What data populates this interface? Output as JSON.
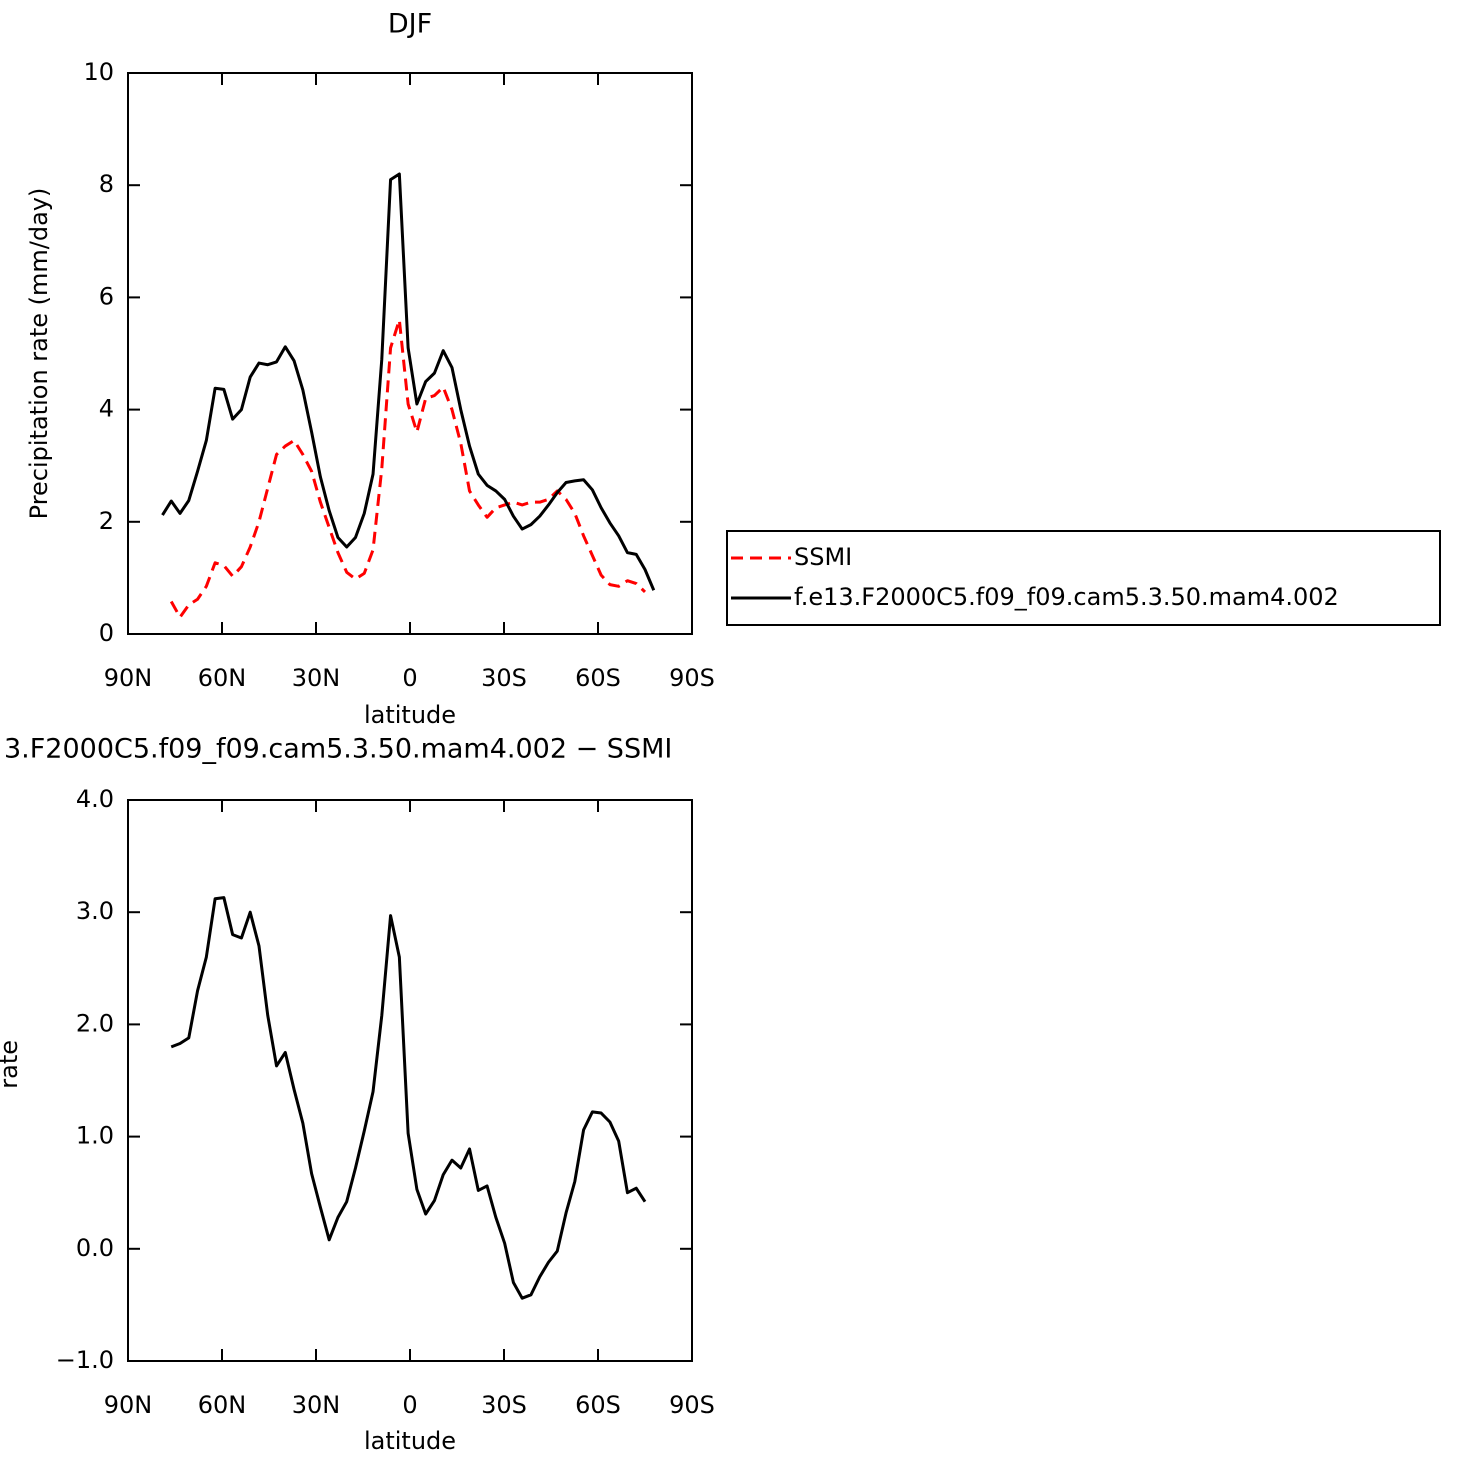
{
  "chart_data": [
    {
      "type": "line",
      "title": "DJF",
      "xlabel": "latitude",
      "ylabel": "Precipitation rate (mm/day)",
      "x": [
        79.0,
        76.2,
        73.4,
        70.6,
        67.8,
        65.0,
        62.2,
        59.4,
        56.6,
        53.8,
        51.0,
        48.2,
        45.4,
        42.6,
        39.8,
        37.0,
        34.2,
        31.4,
        28.6,
        25.8,
        23.0,
        20.2,
        17.4,
        14.6,
        11.8,
        9.0,
        6.2,
        3.4,
        0.6,
        -2.2,
        -5.0,
        -7.8,
        -10.6,
        -13.4,
        -16.2,
        -19.0,
        -21.8,
        -24.6,
        -27.4,
        -30.2,
        -33.0,
        -35.8,
        -38.6,
        -41.4,
        -44.2,
        -47.0,
        -49.8,
        -52.6,
        -55.4,
        -58.2,
        -61.0,
        -63.8,
        -66.6,
        -69.4,
        -72.2,
        -75.0,
        -77.8
      ],
      "series": [
        {
          "name": "SSMI",
          "color": "#ff0000",
          "line_style": "dashed",
          "values": [
            null,
            0.58,
            0.3,
            0.52,
            0.62,
            0.85,
            1.27,
            1.22,
            1.03,
            1.2,
            1.55,
            2.0,
            2.6,
            3.2,
            3.35,
            3.45,
            3.2,
            2.9,
            2.35,
            1.9,
            1.45,
            1.1,
            0.98,
            1.08,
            1.5,
            2.95,
            5.1,
            5.6,
            4.1,
            3.6,
            4.2,
            4.25,
            4.4,
            4.0,
            3.4,
            2.55,
            2.3,
            2.08,
            2.25,
            2.3,
            2.35,
            2.3,
            2.35,
            2.35,
            2.4,
            2.55,
            2.4,
            2.15,
            1.75,
            1.4,
            1.05,
            0.88,
            0.85,
            0.95,
            0.9,
            0.75,
            null
          ]
        },
        {
          "name": "f.e13.F2000C5.f09_f09.cam5.3.50.mam4.002",
          "color": "#000000",
          "line_style": "solid",
          "values": [
            2.12,
            2.37,
            2.15,
            2.38,
            2.9,
            3.45,
            4.38,
            4.36,
            3.83,
            4.0,
            4.58,
            4.83,
            4.8,
            4.85,
            5.12,
            4.87,
            4.35,
            3.6,
            2.8,
            2.2,
            1.72,
            1.55,
            1.72,
            2.15,
            2.85,
            4.9,
            8.1,
            8.2,
            5.1,
            4.1,
            4.5,
            4.65,
            5.05,
            4.75,
            4.0,
            3.35,
            2.85,
            2.65,
            2.55,
            2.4,
            2.1,
            1.87,
            1.95,
            2.1,
            2.3,
            2.52,
            2.7,
            2.73,
            2.75,
            2.57,
            2.25,
            1.98,
            1.75,
            1.45,
            1.42,
            1.15,
            0.78
          ]
        }
      ],
      "xlim": [
        90,
        -90
      ],
      "xticks": [
        {
          "value": 90,
          "label": "90N"
        },
        {
          "value": 60,
          "label": "60N"
        },
        {
          "value": 30,
          "label": "30N"
        },
        0,
        {
          "value": -30,
          "label": "30S"
        },
        {
          "value": -60,
          "label": "60S"
        },
        {
          "value": -90,
          "label": "90S"
        }
      ],
      "ylim": [
        0,
        10
      ],
      "yticks": [
        0,
        2,
        4,
        6,
        8,
        10
      ],
      "grid": false,
      "legend": "right"
    },
    {
      "type": "line",
      "title": "3.F2000C5.f09_f09.cam5.3.50.mam4.002 − SSMI",
      "xlabel": "latitude",
      "ylabel": "Precipitation rate (mm/day)",
      "x": [
        79.0,
        76.2,
        73.4,
        70.6,
        67.8,
        65.0,
        62.2,
        59.4,
        56.6,
        53.8,
        51.0,
        48.2,
        45.4,
        42.6,
        39.8,
        37.0,
        34.2,
        31.4,
        28.6,
        25.8,
        23.0,
        20.2,
        17.4,
        14.6,
        11.8,
        9.0,
        6.2,
        3.4,
        0.6,
        -2.2,
        -5.0,
        -7.8,
        -10.6,
        -13.4,
        -16.2,
        -19.0,
        -21.8,
        -24.6,
        -27.4,
        -30.2,
        -33.0,
        -35.8,
        -38.6,
        -41.4,
        -44.2,
        -47.0,
        -49.8,
        -52.6,
        -55.4,
        -58.2,
        -61.0,
        -63.8,
        -66.6,
        -69.4,
        -72.2,
        -75.0,
        -77.8
      ],
      "series": [
        {
          "color": "#000000",
          "line_style": "solid",
          "values": [
            null,
            1.8,
            1.83,
            1.88,
            2.3,
            2.6,
            3.12,
            3.13,
            2.8,
            2.77,
            3.0,
            2.7,
            2.08,
            1.63,
            1.75,
            1.42,
            1.12,
            0.67,
            0.37,
            0.08,
            0.28,
            0.42,
            0.72,
            1.05,
            1.4,
            2.08,
            2.97,
            2.6,
            1.03,
            0.53,
            0.31,
            0.43,
            0.66,
            0.79,
            0.72,
            0.89,
            0.52,
            0.56,
            0.28,
            0.05,
            -0.3,
            -0.44,
            -0.41,
            -0.25,
            -0.12,
            -0.02,
            0.32,
            0.6,
            1.06,
            1.22,
            1.21,
            1.13,
            0.96,
            0.5,
            0.54,
            0.42,
            null
          ]
        }
      ],
      "xlim": [
        90,
        -90
      ],
      "xticks": [
        {
          "value": 90,
          "label": "90N"
        },
        {
          "value": 60,
          "label": "60N"
        },
        {
          "value": 30,
          "label": "30N"
        },
        0,
        {
          "value": -30,
          "label": "30S"
        },
        {
          "value": -60,
          "label": "60S"
        },
        {
          "value": -90,
          "label": "90S"
        }
      ],
      "ylim": [
        -1,
        4
      ],
      "yticks": [
        {
          "value": -1,
          "label": "−1.0"
        },
        {
          "value": 0,
          "label": "0.0"
        },
        {
          "value": 1,
          "label": "1.0"
        },
        {
          "value": 2,
          "label": "2.0"
        },
        {
          "value": 3,
          "label": "3.0"
        },
        {
          "value": 4,
          "label": "4.0"
        }
      ],
      "grid": false
    }
  ]
}
